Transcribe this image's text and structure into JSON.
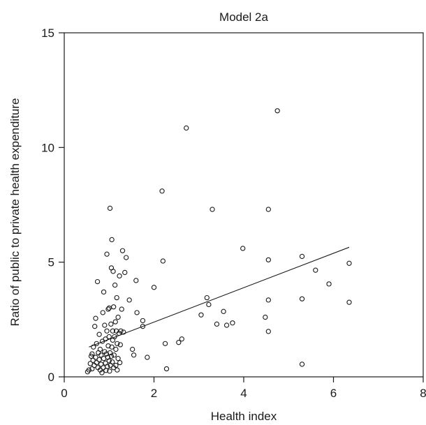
{
  "chart_data": {
    "type": "scatter",
    "title": "Model 2a",
    "xlabel": "Health index",
    "ylabel": "Ratio of public to private health expenditure",
    "xlim": [
      0,
      8
    ],
    "ylim": [
      0,
      15
    ],
    "xticks": [
      "0",
      "2",
      "4",
      "6",
      "8"
    ],
    "yticks": [
      "0",
      "5",
      "10",
      "15"
    ],
    "grid": false,
    "points": [
      [
        0.52,
        0.22
      ],
      [
        0.55,
        0.3
      ],
      [
        0.58,
        0.58
      ],
      [
        0.6,
        0.9
      ],
      [
        0.62,
        0.35
      ],
      [
        0.62,
        1.0
      ],
      [
        0.64,
        0.72
      ],
      [
        0.65,
        1.3
      ],
      [
        0.67,
        0.5
      ],
      [
        0.68,
        2.2
      ],
      [
        0.7,
        2.55
      ],
      [
        0.7,
        0.85
      ],
      [
        0.72,
        1.45
      ],
      [
        0.72,
        0.62
      ],
      [
        0.74,
        4.15
      ],
      [
        0.75,
        0.4
      ],
      [
        0.76,
        1.05
      ],
      [
        0.78,
        0.75
      ],
      [
        0.78,
        1.85
      ],
      [
        0.8,
        0.3
      ],
      [
        0.8,
        1.2
      ],
      [
        0.82,
        0.55
      ],
      [
        0.82,
        0.95
      ],
      [
        0.84,
        0.18
      ],
      [
        0.85,
        1.55
      ],
      [
        0.86,
        2.8
      ],
      [
        0.87,
        0.4
      ],
      [
        0.88,
        0.8
      ],
      [
        0.88,
        3.7
      ],
      [
        0.9,
        1.1
      ],
      [
        0.9,
        2.25
      ],
      [
        0.92,
        0.6
      ],
      [
        0.92,
        1.65
      ],
      [
        0.93,
        0.28
      ],
      [
        0.94,
        1.0
      ],
      [
        0.95,
        5.35
      ],
      [
        0.95,
        2.0
      ],
      [
        0.96,
        0.45
      ],
      [
        0.97,
        0.85
      ],
      [
        0.98,
        1.35
      ],
      [
        0.98,
        2.95
      ],
      [
        1.0,
        0.7
      ],
      [
        1.0,
        3.0
      ],
      [
        1.0,
        1.75
      ],
      [
        1.01,
        0.25
      ],
      [
        1.02,
        7.35
      ],
      [
        1.02,
        1.05
      ],
      [
        1.03,
        0.5
      ],
      [
        1.04,
        2.3
      ],
      [
        1.05,
        4.75
      ],
      [
        1.05,
        0.9
      ],
      [
        1.06,
        5.98
      ],
      [
        1.06,
        1.3
      ],
      [
        1.07,
        0.65
      ],
      [
        1.08,
        2.0
      ],
      [
        1.08,
        1.6
      ],
      [
        1.09,
        4.6
      ],
      [
        1.1,
        0.4
      ],
      [
        1.1,
        3.05
      ],
      [
        1.11,
        0.95
      ],
      [
        1.12,
        1.75
      ],
      [
        1.13,
        4.0
      ],
      [
        1.14,
        2.4
      ],
      [
        1.15,
        1.2
      ],
      [
        1.15,
        0.5
      ],
      [
        1.16,
        2.0
      ],
      [
        1.17,
        3.45
      ],
      [
        1.18,
        0.3
      ],
      [
        1.18,
        1.45
      ],
      [
        1.2,
        0.8
      ],
      [
        1.2,
        2.6
      ],
      [
        1.22,
        1.9
      ],
      [
        1.23,
        4.4
      ],
      [
        1.24,
        0.62
      ],
      [
        1.25,
        1.4
      ],
      [
        1.26,
        2.0
      ],
      [
        1.28,
        2.95
      ],
      [
        1.3,
        5.5
      ],
      [
        1.32,
        1.95
      ],
      [
        1.35,
        4.55
      ],
      [
        1.38,
        5.2
      ],
      [
        1.45,
        3.35
      ],
      [
        1.52,
        1.2
      ],
      [
        1.55,
        0.95
      ],
      [
        1.6,
        4.2
      ],
      [
        1.62,
        2.8
      ],
      [
        1.75,
        2.45
      ],
      [
        1.75,
        2.2
      ],
      [
        1.85,
        0.85
      ],
      [
        2.0,
        3.9
      ],
      [
        2.18,
        8.1
      ],
      [
        2.2,
        5.05
      ],
      [
        2.25,
        1.45
      ],
      [
        2.28,
        0.35
      ],
      [
        2.55,
        1.5
      ],
      [
        2.62,
        1.65
      ],
      [
        2.72,
        10.85
      ],
      [
        3.05,
        2.7
      ],
      [
        3.18,
        3.45
      ],
      [
        3.22,
        3.15
      ],
      [
        3.3,
        7.3
      ],
      [
        3.4,
        2.3
      ],
      [
        3.55,
        2.85
      ],
      [
        3.62,
        2.25
      ],
      [
        3.75,
        2.35
      ],
      [
        3.98,
        5.6
      ],
      [
        4.48,
        2.6
      ],
      [
        4.55,
        7.3
      ],
      [
        4.55,
        3.35
      ],
      [
        4.55,
        5.1
      ],
      [
        4.55,
        1.98
      ],
      [
        4.75,
        11.6
      ],
      [
        5.3,
        5.25
      ],
      [
        5.3,
        3.4
      ],
      [
        5.3,
        0.55
      ],
      [
        5.6,
        4.65
      ],
      [
        5.9,
        4.05
      ],
      [
        6.35,
        4.95
      ],
      [
        6.35,
        3.25
      ]
    ],
    "fit_line": [
      [
        0.55,
        1.3
      ],
      [
        6.35,
        5.65
      ]
    ]
  }
}
